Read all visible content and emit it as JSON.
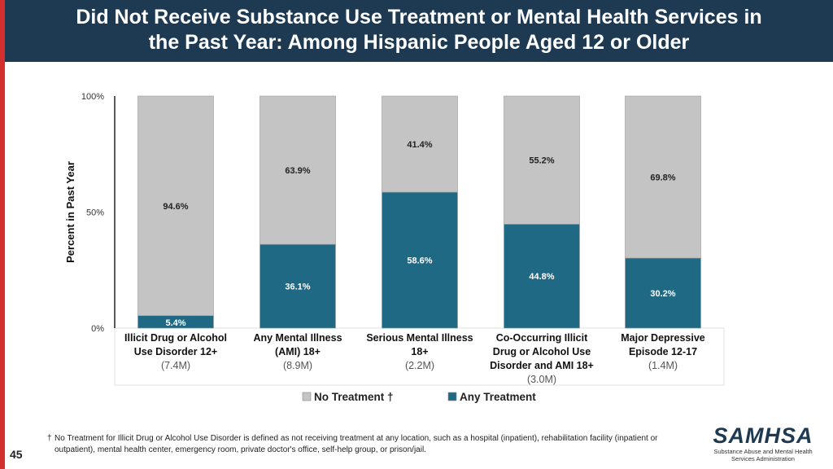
{
  "header": {
    "title_line1": "Did Not Receive Substance Use Treatment or Mental Health Services in",
    "title_line2": "the Past Year: Among Hispanic People Aged 12 or Older"
  },
  "chart_data": {
    "type": "bar",
    "stacked": true,
    "ylabel": "Percent in Past Year",
    "ylim": [
      0,
      100
    ],
    "yticks": [
      "0%",
      "50%",
      "100%"
    ],
    "categories": [
      [
        "Illicit Drug or Alcohol",
        "Use Disorder 12+"
      ],
      [
        "Any Mental Illness",
        "(AMI) 18+"
      ],
      [
        "Serious Mental Illness",
        "18+"
      ],
      [
        "Co-Occurring Illicit",
        "Drug or Alcohol Use",
        "Disorder and AMI 18+"
      ],
      [
        "Major Depressive",
        "Episode 12-17"
      ]
    ],
    "category_sizes": [
      "(7.4M)",
      "(8.9M)",
      "(2.2M)",
      "(3.0M)",
      "(1.4M)"
    ],
    "series": [
      {
        "name": "Any Treatment",
        "color": "#1f6985",
        "values": [
          5.4,
          36.1,
          58.6,
          44.8,
          30.2
        ],
        "labels": [
          "5.4%",
          "36.1%",
          "58.6%",
          "44.8%",
          "30.2%"
        ]
      },
      {
        "name": "No Treatment †",
        "color": "#c4c4c4",
        "values": [
          94.6,
          63.9,
          41.4,
          55.2,
          69.8
        ],
        "labels": [
          "94.6%",
          "63.9%",
          "41.4%",
          "55.2%",
          "69.8%"
        ]
      }
    ],
    "legend": [
      {
        "label": "No Treatment †",
        "color": "#c4c4c4"
      },
      {
        "label": "Any Treatment",
        "color": "#1f6985"
      }
    ]
  },
  "footnote": {
    "dagger": "†",
    "text": "No Treatment for Illicit Drug or Alcohol Use Disorder is defined as not receiving treatment at any location, such as a hospital (inpatient), rehabilitation facility (inpatient or outpatient), mental health center, emergency room, private doctor's office, self-help group, or prison/jail."
  },
  "page_number": "45",
  "logo": {
    "name": "SAMHSA",
    "subtitle_line1": "Substance Abuse and Mental Health",
    "subtitle_line2": "Services Administration"
  }
}
